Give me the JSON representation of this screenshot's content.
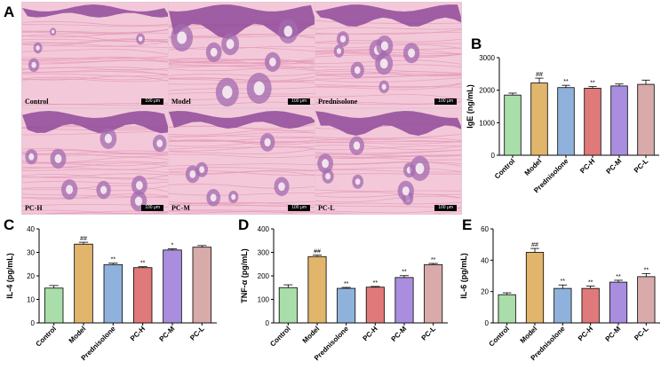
{
  "panel_A": {
    "letter": "A",
    "tiles": [
      {
        "label": "Control",
        "scale": "100 μm",
        "variant": "control"
      },
      {
        "label": "Model",
        "scale": "100 μm",
        "variant": "model"
      },
      {
        "label": "Prednisolone",
        "scale": "100 μm",
        "variant": "mid"
      },
      {
        "label": "PC-H",
        "scale": "100 μm",
        "variant": "mid"
      },
      {
        "label": "PC-M",
        "scale": "100 μm",
        "variant": "mild"
      },
      {
        "label": "PC-L",
        "scale": "100 μm",
        "variant": "heavy"
      }
    ],
    "colors": {
      "stroma": "#f3c9d9",
      "fiber": "#e59ab8",
      "epidermis": "#8f4a9a",
      "gland": "#a46bb0",
      "lumen": "#f7eef3"
    }
  },
  "chart_data": [
    {
      "letter": "B",
      "type": "bar",
      "categories": [
        "Control",
        "Model",
        "Prednisolone",
        "PC-H",
        "PC-M",
        "PC-L"
      ],
      "values": [
        1850,
        2220,
        2080,
        2060,
        2130,
        2180
      ],
      "errors": [
        60,
        150,
        70,
        50,
        60,
        130
      ],
      "significance": [
        "",
        "##",
        "**",
        "**",
        "",
        ""
      ],
      "ylabel": "IgE (ng/mL)",
      "ylim": [
        0,
        3000
      ],
      "yticks": [
        "0",
        "1000",
        "2000",
        "3000"
      ],
      "colors": [
        "#a9dda9",
        "#e2b56c",
        "#8fb2dc",
        "#e07a7a",
        "#a98ee0",
        "#d9aaaa"
      ]
    },
    {
      "letter": "C",
      "type": "bar",
      "categories": [
        "Control",
        "Model",
        "Prednisolone",
        "PC-H",
        "PC-M",
        "PC-L"
      ],
      "values": [
        14.8,
        33.5,
        24.8,
        23.5,
        31.0,
        32.2
      ],
      "errors": [
        1.1,
        0.8,
        0.6,
        0.4,
        0.5,
        0.7
      ],
      "significance": [
        "",
        "##",
        "**",
        "**",
        "*",
        ""
      ],
      "ylabel": "IL-4 (pg/mL)",
      "ylim": [
        0,
        40
      ],
      "yticks": [
        "0",
        "10",
        "20",
        "30",
        "40"
      ],
      "colors": [
        "#a9dda9",
        "#e2b56c",
        "#8fb2dc",
        "#e07a7a",
        "#a98ee0",
        "#d9aaaa"
      ]
    },
    {
      "letter": "D",
      "type": "bar",
      "categories": [
        "Control",
        "Model",
        "Prednisolone",
        "PC-H",
        "PC-M",
        "PC-L"
      ],
      "values": [
        150,
        282,
        147,
        152,
        193,
        248
      ],
      "errors": [
        12,
        6,
        4,
        3,
        8,
        5
      ],
      "significance": [
        "",
        "##",
        "**",
        "**",
        "**",
        "**"
      ],
      "ylabel": "TNF-α (pg/mL)",
      "ylim": [
        0,
        400
      ],
      "yticks": [
        "0",
        "100",
        "200",
        "300",
        "400"
      ],
      "colors": [
        "#a9dda9",
        "#e2b56c",
        "#8fb2dc",
        "#e07a7a",
        "#a98ee0",
        "#d9aaaa"
      ]
    },
    {
      "letter": "E",
      "type": "bar",
      "categories": [
        "Control",
        "Model",
        "Prednisolone",
        "PC-H",
        "PC-M",
        "PC-L"
      ],
      "values": [
        18,
        45,
        22,
        22,
        26,
        29.5
      ],
      "errors": [
        1.2,
        2.5,
        2.2,
        1.5,
        1.2,
        2.0
      ],
      "significance": [
        "",
        "##",
        "**",
        "**",
        "**",
        "**"
      ],
      "ylabel": "IL-6 (pg/mL)",
      "ylim": [
        0,
        60
      ],
      "yticks": [
        "0",
        "20",
        "40",
        "60"
      ],
      "colors": [
        "#a9dda9",
        "#e2b56c",
        "#8fb2dc",
        "#e07a7a",
        "#a98ee0",
        "#d9aaaa"
      ]
    }
  ]
}
